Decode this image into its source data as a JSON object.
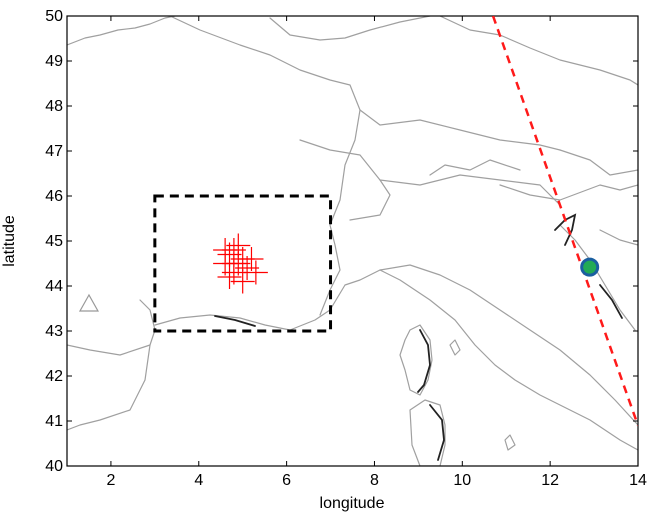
{
  "chart_data": {
    "type": "scatter",
    "title": "",
    "xlabel": "longitude",
    "ylabel": "latitude",
    "xlim": [
      1,
      14
    ],
    "ylim": [
      40,
      50
    ],
    "xticks": [
      2,
      4,
      6,
      8,
      10,
      12,
      14
    ],
    "yticks": [
      40,
      41,
      42,
      43,
      44,
      45,
      46,
      47,
      48,
      49,
      50
    ],
    "grid": false,
    "legend": null,
    "basemap": "coastlines and country borders (grey/black outlines)",
    "region_box": {
      "style": "black dashed rectangle",
      "lon": [
        3,
        7
      ],
      "lat": [
        43,
        46
      ]
    },
    "red_cross_markers": [
      {
        "lon": 4.6,
        "lat": 44.5
      },
      {
        "lon": 4.7,
        "lat": 44.7
      },
      {
        "lon": 4.8,
        "lat": 44.3
      },
      {
        "lon": 4.9,
        "lat": 44.9
      },
      {
        "lon": 5.0,
        "lat": 44.6
      },
      {
        "lon": 4.7,
        "lat": 44.2
      },
      {
        "lon": 5.1,
        "lat": 44.4
      },
      {
        "lon": 4.9,
        "lat": 44.5
      },
      {
        "lon": 4.8,
        "lat": 44.8
      },
      {
        "lon": 5.2,
        "lat": 44.6
      },
      {
        "lon": 4.6,
        "lat": 44.8
      },
      {
        "lon": 5.3,
        "lat": 44.3
      },
      {
        "lon": 5.0,
        "lat": 44.1
      },
      {
        "lon": 4.8,
        "lat": 44.5
      }
    ],
    "triangle_marker": {
      "lon": 1.5,
      "lat": 43.6
    },
    "circle_marker": {
      "lon": 12.9,
      "lat": 44.42
    },
    "dashed_line": {
      "style": "red dashed",
      "points": [
        [
          10.7,
          50
        ],
        [
          14,
          40.9
        ]
      ]
    },
    "colors": {
      "crosses": "#ff0000",
      "dashed_line": "#ff1a1a",
      "box": "#000000",
      "triangle": "#999999",
      "circle_fill": "#22aa55",
      "circle_stroke": "#1a5fa0",
      "coast": "#999999",
      "coast_dark": "#222222"
    }
  }
}
